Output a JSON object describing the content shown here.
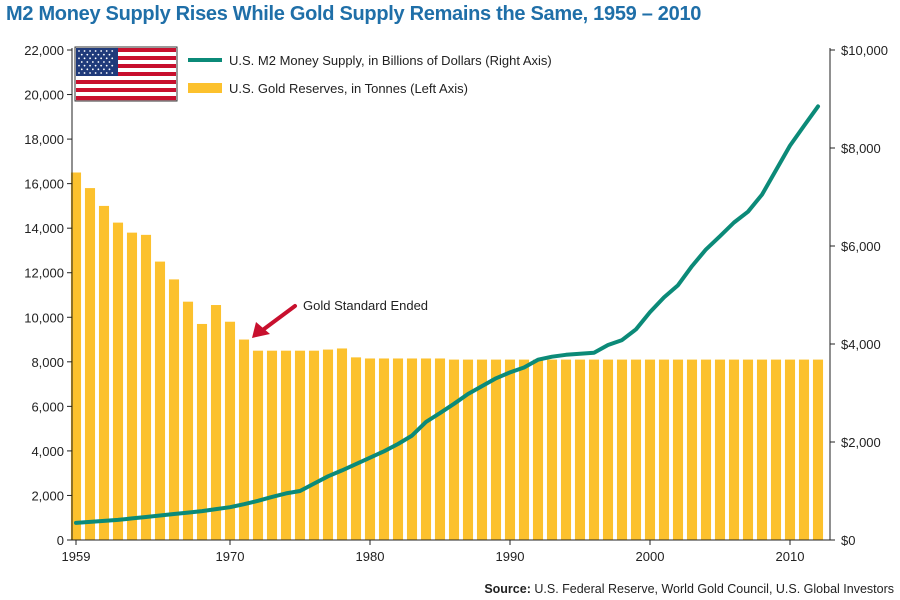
{
  "title": "M2 Money Supply Rises While Gold Supply Remains the Same, 1959 – 2010",
  "source_label": "Source:",
  "source_text": "U.S. Federal Reserve, World Gold Council, U.S. Global Investors",
  "annotation": "Gold Standard Ended",
  "colors": {
    "bar": "#fcc12d",
    "line": "#0b8a78",
    "arrow": "#c8102e",
    "title": "#1f6fa8"
  },
  "icons": {
    "legend_flag": "us-flag-icon"
  },
  "chart_data": {
    "type": "bar",
    "title": "M2 Money Supply Rises While Gold Supply Remains the Same, 1959 – 2010",
    "grid": false,
    "legend_position": "top-left",
    "x_ticks": [
      "1959",
      "1970",
      "1980",
      "1990",
      "2000",
      "2010"
    ],
    "x_tick_values": [
      1959,
      1970,
      1980,
      1990,
      2000,
      2010
    ],
    "xlim": [
      1959,
      2012
    ],
    "left_axis": {
      "ylim": [
        0,
        22000
      ],
      "ticks": [
        "0",
        "2,000",
        "4,000",
        "6,000",
        "8,000",
        "10,000",
        "12,000",
        "14,000",
        "16,000",
        "18,000",
        "20,000",
        "22,000"
      ]
    },
    "right_axis": {
      "ylim": [
        0,
        10000
      ],
      "ticks": [
        "$0",
        "$2,000",
        "$4,000",
        "$6,000",
        "$8,000",
        "$10,000"
      ]
    },
    "series": [
      {
        "name": "U.S. Gold Reserves, in Tonnes (Left Axis)",
        "type": "bar",
        "axis": "left",
        "x": [
          1959,
          1960,
          1961,
          1962,
          1963,
          1964,
          1965,
          1966,
          1967,
          1968,
          1969,
          1970,
          1971,
          1972,
          1973,
          1974,
          1975,
          1976,
          1977,
          1978,
          1979,
          1980,
          1981,
          1982,
          1983,
          1984,
          1985,
          1986,
          1987,
          1988,
          1989,
          1990,
          1991,
          1992,
          1993,
          1994,
          1995,
          1996,
          1997,
          1998,
          1999,
          2000,
          2001,
          2002,
          2003,
          2004,
          2005,
          2006,
          2007,
          2008,
          2009,
          2010,
          2011,
          2012
        ],
        "values": [
          16500,
          15800,
          15000,
          14250,
          13800,
          13700,
          12500,
          11700,
          10700,
          9700,
          10550,
          9800,
          9000,
          8500,
          8500,
          8500,
          8500,
          8500,
          8550,
          8600,
          8200,
          8150,
          8150,
          8150,
          8150,
          8150,
          8150,
          8100,
          8100,
          8100,
          8100,
          8100,
          8100,
          8100,
          8100,
          8100,
          8100,
          8100,
          8100,
          8100,
          8100,
          8100,
          8100,
          8100,
          8100,
          8100,
          8100,
          8100,
          8100,
          8100,
          8100,
          8100,
          8100,
          8100
        ]
      },
      {
        "name": "U.S. M2 Money Supply, in Billions of Dollars (Right Axis)",
        "type": "line",
        "axis": "right",
        "x": [
          1959,
          1960,
          1961,
          1962,
          1963,
          1964,
          1965,
          1966,
          1967,
          1968,
          1969,
          1970,
          1971,
          1972,
          1973,
          1974,
          1975,
          1976,
          1977,
          1978,
          1979,
          1980,
          1981,
          1982,
          1983,
          1984,
          1985,
          1986,
          1987,
          1988,
          1989,
          1990,
          1991,
          1992,
          1993,
          1994,
          1995,
          1996,
          1997,
          1998,
          1999,
          2000,
          2001,
          2002,
          2003,
          2004,
          2005,
          2006,
          2007,
          2008,
          2009,
          2010,
          2011,
          2012
        ],
        "values": [
          350,
          370,
          390,
          410,
          440,
          470,
          500,
          530,
          560,
          590,
          630,
          670,
          730,
          800,
          880,
          950,
          1000,
          1150,
          1300,
          1420,
          1550,
          1680,
          1810,
          1960,
          2130,
          2410,
          2590,
          2780,
          2980,
          3140,
          3300,
          3420,
          3520,
          3680,
          3740,
          3780,
          3800,
          3820,
          3980,
          4080,
          4300,
          4650,
          4950,
          5200,
          5590,
          5930,
          6200,
          6480,
          6700,
          7050,
          7550,
          8050,
          8450,
          8850
        ]
      }
    ]
  }
}
